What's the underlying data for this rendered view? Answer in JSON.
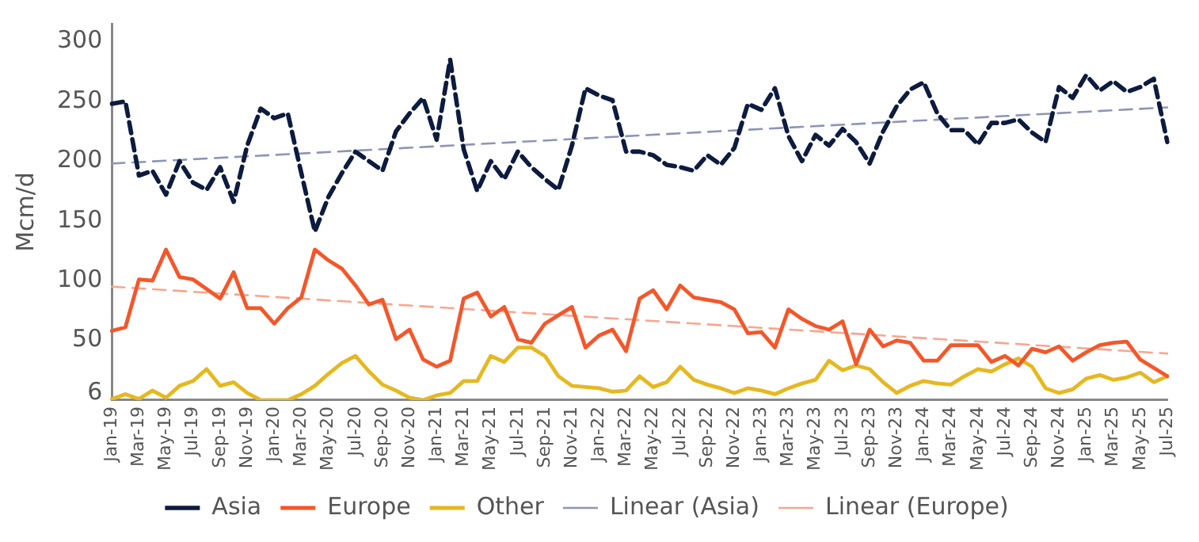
{
  "chart_data": {
    "type": "line",
    "ylabel": "Mcm/d",
    "ylim": [
      0,
      315
    ],
    "yticks": [
      6,
      50,
      100,
      150,
      200,
      250,
      300
    ],
    "grid": false,
    "legend": "bottom",
    "marker": "none",
    "categories": [
      "Jan-19",
      null,
      "Mar-19",
      null,
      "May-19",
      null,
      "Jul-19",
      null,
      "Sep-19",
      null,
      "Nov-19",
      null,
      "Jan-20",
      null,
      "Mar-20",
      null,
      "May-20",
      null,
      "Jul-20",
      null,
      "Sep-20",
      null,
      "Nov-20",
      null,
      "Jan-21",
      null,
      "Mar-21",
      null,
      "May-21",
      null,
      "Jul-21",
      null,
      "Sep-21",
      null,
      "Nov-21",
      null,
      "Jan-22",
      null,
      "Mar-22",
      null,
      "May-22",
      null,
      "Jul-22",
      null,
      "Sep-22",
      null,
      "Nov-22",
      null,
      "Jan-23",
      null,
      "Mar-23",
      null,
      "May-23",
      null,
      "Jul-23",
      null,
      "Sep-23",
      null,
      "Nov-23",
      null,
      "Jan-24",
      null,
      "Mar-24",
      null,
      "May-24",
      null,
      "Jul-24",
      null,
      "Sep-24",
      null,
      "Nov-24",
      null,
      "Jan-25",
      null,
      "Mar-25",
      null,
      "May-25",
      null,
      "Jul-25"
    ],
    "series": [
      {
        "name": "Asia",
        "color": "#0d1b3e",
        "line_style": "dashed",
        "values": [
          248,
          250,
          188,
          192,
          172,
          200,
          182,
          176,
          195,
          166,
          213,
          244,
          236,
          240,
          190,
          141,
          170,
          190,
          208,
          200,
          192,
          225,
          240,
          253,
          218,
          285,
          210,
          175,
          200,
          185,
          208,
          195,
          185,
          176,
          213,
          261,
          255,
          251,
          208,
          208,
          205,
          197,
          195,
          192,
          205,
          197,
          211,
          248,
          243,
          261,
          221,
          200,
          222,
          213,
          227,
          216,
          198,
          225,
          246,
          260,
          266,
          240,
          226,
          226,
          214,
          232,
          232,
          235,
          224,
          216,
          262,
          253,
          272,
          259,
          267,
          258,
          262,
          269,
          216
        ]
      },
      {
        "name": "Europe",
        "color": "#f4572a",
        "line_style": "solid",
        "values": [
          58,
          61,
          101,
          100,
          126,
          103,
          101,
          93,
          85,
          107,
          77,
          77,
          64,
          77,
          86,
          126,
          117,
          110,
          96,
          80,
          84,
          51,
          59,
          34,
          28,
          33,
          85,
          90,
          70,
          78,
          51,
          48,
          64,
          71,
          78,
          44,
          54,
          59,
          41,
          85,
          92,
          76,
          96,
          86,
          84,
          82,
          76,
          56,
          57,
          44,
          76,
          68,
          62,
          59,
          66,
          30,
          59,
          45,
          50,
          48,
          33,
          33,
          46,
          46,
          46,
          32,
          37,
          29,
          43,
          40,
          45,
          33,
          40,
          46,
          48,
          49,
          34,
          27,
          20
        ]
      },
      {
        "name": "Other",
        "color": "#e6b820",
        "line_style": "solid",
        "values": [
          1,
          5,
          1,
          8,
          2,
          12,
          16,
          26,
          12,
          15,
          6,
          0,
          0,
          0,
          5,
          12,
          22,
          31,
          37,
          24,
          13,
          8,
          2,
          0,
          4,
          6,
          16,
          16,
          37,
          32,
          44,
          44,
          37,
          20,
          12,
          11,
          10,
          7,
          8,
          20,
          11,
          15,
          28,
          17,
          13,
          10,
          6,
          10,
          8,
          5,
          10,
          14,
          17,
          33,
          25,
          29,
          26,
          15,
          6,
          12,
          16,
          14,
          13,
          20,
          26,
          24,
          30,
          35,
          28,
          10,
          6,
          9,
          18,
          21,
          17,
          19,
          23,
          15,
          20
        ]
      },
      {
        "name": "Linear (Asia)",
        "color": "#8e95b5",
        "line_style": "dashed",
        "x": [
          "Jan-19",
          "Jul-25"
        ],
        "values": [
          198,
          245
        ]
      },
      {
        "name": "Linear (Europe)",
        "color": "#f9a58f",
        "line_style": "dashed",
        "x": [
          "Jan-19",
          "Jul-25"
        ],
        "values": [
          95,
          39
        ]
      }
    ]
  }
}
